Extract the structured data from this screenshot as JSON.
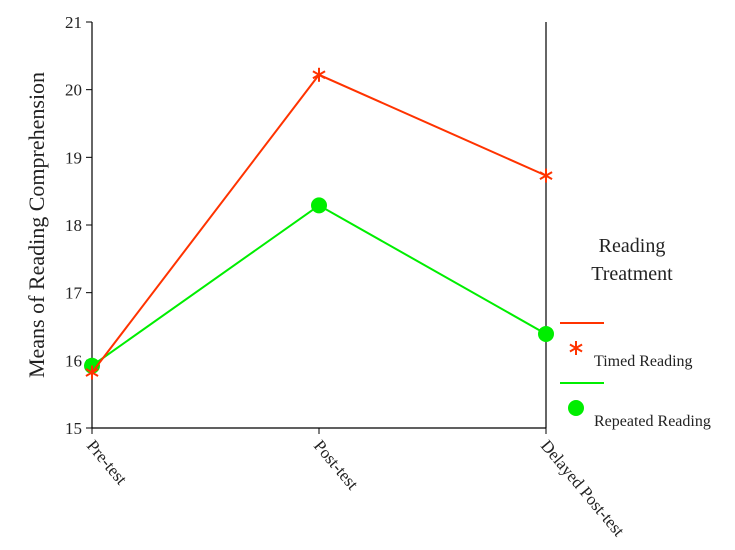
{
  "chart_data": {
    "type": "line",
    "categories": [
      "Pre-test",
      "Post-test",
      "Delayed Post-test"
    ],
    "ylabel": "Means of Reading Comprehension",
    "ylim": [
      15,
      21
    ],
    "yticks": [
      "15",
      "16",
      "17",
      "18",
      "19",
      "20",
      "21"
    ],
    "legend": {
      "title_line1": "Reading",
      "title_line2": "Treatment",
      "position": "right"
    },
    "series": [
      {
        "name": "Timed Reading",
        "values": [
          15.82,
          20.22,
          18.73
        ],
        "color": "#ff3300",
        "marker": "asterisk"
      },
      {
        "name": "Repeated Reading",
        "values": [
          15.92,
          18.29,
          16.39
        ],
        "color": "#00ee00",
        "marker": "circle"
      }
    ]
  }
}
